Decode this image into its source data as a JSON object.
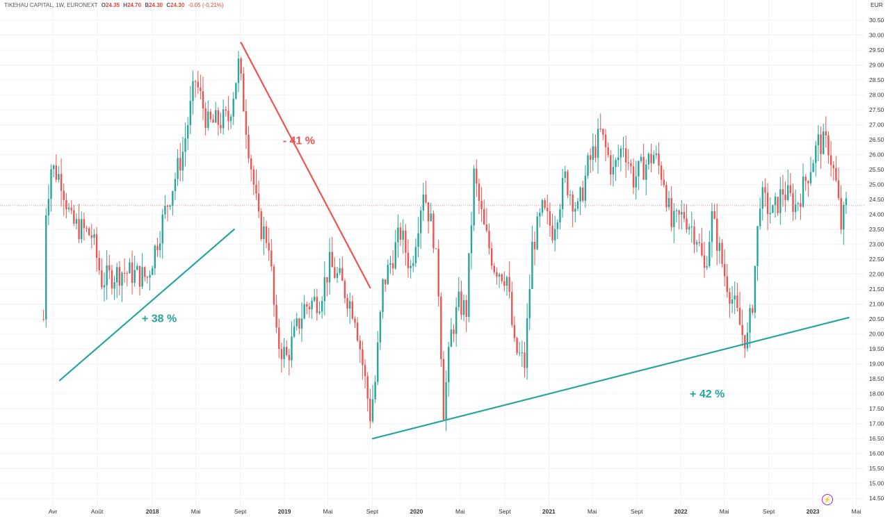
{
  "header": {
    "symbol": "TIKEHAU CAPITAL, 1W, EURONEXT",
    "o_label": "O",
    "o_value": "24.35",
    "h_label": "H",
    "h_value": "24.70",
    "b_label": "B",
    "b_value": "24.30",
    "c_label": "C",
    "c_value": "24.30",
    "change": "-0.05 (-0.21%)"
  },
  "colors": {
    "up": "#26a69a",
    "down": "#ef5350",
    "annotation_up": "#26a69a",
    "annotation_down": "#ef5350",
    "last_price_line": "#ef5350",
    "grid": "#f0f3f8"
  },
  "chart_data": {
    "type": "candlestick",
    "currency_label": "EUR",
    "ylim": [
      14.25,
      30.85
    ],
    "y_ticks": [
      "30.50",
      "30.00",
      "29.50",
      "29.00",
      "28.50",
      "28.00",
      "27.50",
      "27.00",
      "26.50",
      "26.00",
      "25.50",
      "25.00",
      "24.50",
      "24.00",
      "23.50",
      "23.00",
      "22.50",
      "22.00",
      "21.50",
      "21.00",
      "20.50",
      "20.00",
      "19.50",
      "19.00",
      "18.50",
      "18.00",
      "17.50",
      "17.00",
      "16.50",
      "16.00",
      "15.50",
      "15.00",
      "14.50"
    ],
    "x_ticks": [
      {
        "label": "Avr",
        "date": "2017-04-01"
      },
      {
        "label": "Août",
        "date": "2017-08-01"
      },
      {
        "label": "2018",
        "date": "2018-01-01"
      },
      {
        "label": "Mai",
        "date": "2018-05-01"
      },
      {
        "label": "Sept",
        "date": "2018-09-01"
      },
      {
        "label": "2019",
        "date": "2019-01-01"
      },
      {
        "label": "Mai",
        "date": "2019-05-01"
      },
      {
        "label": "Sept",
        "date": "2019-09-01"
      },
      {
        "label": "2020",
        "date": "2020-01-01"
      },
      {
        "label": "Mai",
        "date": "2020-05-01"
      },
      {
        "label": "Sept",
        "date": "2020-09-01"
      },
      {
        "label": "2021",
        "date": "2021-01-01"
      },
      {
        "label": "Mai",
        "date": "2021-05-01"
      },
      {
        "label": "Sept",
        "date": "2021-09-01"
      },
      {
        "label": "2022",
        "date": "2022-01-01"
      },
      {
        "label": "Mai",
        "date": "2022-05-01"
      },
      {
        "label": "Sept",
        "date": "2022-09-01"
      },
      {
        "label": "2023",
        "date": "2023-01-01"
      },
      {
        "label": "Mai",
        "date": "2023-05-01"
      }
    ],
    "last_price": 24.3,
    "series_anchors": [
      {
        "date": "2017-03-06",
        "price": 20.5
      },
      {
        "date": "2017-03-13",
        "price": 24.2
      },
      {
        "date": "2017-03-27",
        "price": 25.6
      },
      {
        "date": "2017-04-24",
        "price": 25.2
      },
      {
        "date": "2017-05-22",
        "price": 23.7
      },
      {
        "date": "2017-07-17",
        "price": 23.3
      },
      {
        "date": "2017-08-14",
        "price": 21.8
      },
      {
        "date": "2017-10-09",
        "price": 22.1
      },
      {
        "date": "2017-12-18",
        "price": 21.9
      },
      {
        "date": "2018-02-05",
        "price": 24.1
      },
      {
        "date": "2018-03-26",
        "price": 26.1
      },
      {
        "date": "2018-04-30",
        "price": 28.5
      },
      {
        "date": "2018-06-04",
        "price": 27.0
      },
      {
        "date": "2018-07-30",
        "price": 27.2
      },
      {
        "date": "2018-08-27",
        "price": 29.0
      },
      {
        "date": "2018-09-10",
        "price": 27.7
      },
      {
        "date": "2018-09-24",
        "price": 26.3
      },
      {
        "date": "2018-10-22",
        "price": 23.7
      },
      {
        "date": "2018-11-19",
        "price": 23.1
      },
      {
        "date": "2018-12-10",
        "price": 19.8
      },
      {
        "date": "2019-01-07",
        "price": 19.2
      },
      {
        "date": "2019-02-25",
        "price": 20.9
      },
      {
        "date": "2019-04-08",
        "price": 21.2
      },
      {
        "date": "2019-05-06",
        "price": 22.3
      },
      {
        "date": "2019-06-03",
        "price": 21.8
      },
      {
        "date": "2019-07-15",
        "price": 20.7
      },
      {
        "date": "2019-08-05",
        "price": 19.0
      },
      {
        "date": "2019-08-26",
        "price": 17.3
      },
      {
        "date": "2019-09-09",
        "price": 18.4
      },
      {
        "date": "2019-09-30",
        "price": 21.6
      },
      {
        "date": "2019-11-18",
        "price": 23.4
      },
      {
        "date": "2019-12-16",
        "price": 22.2
      },
      {
        "date": "2020-01-20",
        "price": 24.9
      },
      {
        "date": "2020-02-17",
        "price": 23.3
      },
      {
        "date": "2020-03-02",
        "price": 21.5
      },
      {
        "date": "2020-03-16",
        "price": 17.5
      },
      {
        "date": "2020-04-06",
        "price": 20.0
      },
      {
        "date": "2020-04-27",
        "price": 21.0
      },
      {
        "date": "2020-05-18",
        "price": 20.8
      },
      {
        "date": "2020-06-08",
        "price": 25.3
      },
      {
        "date": "2020-07-06",
        "price": 23.5
      },
      {
        "date": "2020-08-03",
        "price": 22.3
      },
      {
        "date": "2020-09-07",
        "price": 21.9
      },
      {
        "date": "2020-09-28",
        "price": 19.5
      },
      {
        "date": "2020-10-26",
        "price": 19.0
      },
      {
        "date": "2020-11-16",
        "price": 22.9
      },
      {
        "date": "2020-12-14",
        "price": 24.1
      },
      {
        "date": "2021-01-11",
        "price": 23.5
      },
      {
        "date": "2021-02-15",
        "price": 25.2
      },
      {
        "date": "2021-03-22",
        "price": 24.1
      },
      {
        "date": "2021-04-19",
        "price": 25.6
      },
      {
        "date": "2021-05-24",
        "price": 26.7
      },
      {
        "date": "2021-06-28",
        "price": 25.4
      },
      {
        "date": "2021-07-26",
        "price": 26.4
      },
      {
        "date": "2021-08-23",
        "price": 25.2
      },
      {
        "date": "2021-09-20",
        "price": 25.6
      },
      {
        "date": "2021-10-18",
        "price": 26.0
      },
      {
        "date": "2021-11-15",
        "price": 25.2
      },
      {
        "date": "2021-12-06",
        "price": 23.6
      },
      {
        "date": "2022-01-10",
        "price": 24.0
      },
      {
        "date": "2022-02-14",
        "price": 23.3
      },
      {
        "date": "2022-03-07",
        "price": 22.1
      },
      {
        "date": "2022-03-28",
        "price": 23.9
      },
      {
        "date": "2022-05-02",
        "price": 22.0
      },
      {
        "date": "2022-05-30",
        "price": 20.9
      },
      {
        "date": "2022-06-20",
        "price": 20.0
      },
      {
        "date": "2022-07-04",
        "price": 19.8
      },
      {
        "date": "2022-07-18",
        "price": 21.1
      },
      {
        "date": "2022-08-08",
        "price": 24.6
      },
      {
        "date": "2022-09-12",
        "price": 24.0
      },
      {
        "date": "2022-10-10",
        "price": 24.8
      },
      {
        "date": "2022-11-14",
        "price": 24.3
      },
      {
        "date": "2022-12-05",
        "price": 24.9
      },
      {
        "date": "2023-01-16",
        "price": 26.4
      },
      {
        "date": "2023-02-13",
        "price": 26.3
      },
      {
        "date": "2023-03-06",
        "price": 25.0
      },
      {
        "date": "2023-03-20",
        "price": 23.6
      },
      {
        "date": "2023-04-03",
        "price": 24.3
      }
    ],
    "trend_lines": [
      {
        "name": "uptrend-2017-2018",
        "color": "annotation_up",
        "from": {
          "date": "2017-04-20",
          "price": 18.45
        },
        "to": {
          "date": "2018-08-15",
          "price": 23.5
        }
      },
      {
        "name": "downtrend-2018-2019",
        "color": "annotation_down",
        "from": {
          "date": "2018-09-03",
          "price": 29.75
        },
        "to": {
          "date": "2019-08-26",
          "price": 21.55
        }
      },
      {
        "name": "uptrend-2019-2023",
        "color": "annotation_up",
        "from": {
          "date": "2019-09-02",
          "price": 16.5
        },
        "to": {
          "date": "2023-04-10",
          "price": 20.55
        }
      }
    ],
    "annotations": [
      {
        "text": "+ 38 %",
        "color": "annotation_up",
        "date": "2018-01-20",
        "price": 20.4
      },
      {
        "text": "- 41 %",
        "color": "annotation_down",
        "date": "2019-02-10",
        "price": 26.35
      },
      {
        "text": "+ 42 %",
        "color": "annotation_up",
        "date": "2022-03-15",
        "price": 17.88
      }
    ]
  },
  "footer_icon": "lightning-icon"
}
